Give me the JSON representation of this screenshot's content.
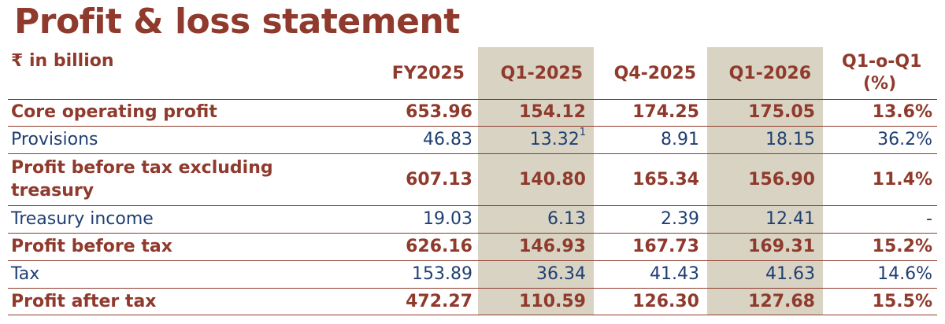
{
  "title": "Profit & loss statement",
  "unit_label": "₹ in billion",
  "columns": [
    "FY2025",
    "Q1-2025",
    "Q4-2025",
    "Q1-2026",
    "Q1-o-Q1",
    "(%)"
  ],
  "rows": [
    {
      "label": [
        "Core operating profit"
      ],
      "values": [
        "653.96",
        "154.12",
        "174.25",
        "175.05",
        "13.6%"
      ],
      "sup": ""
    },
    {
      "label": [
        "Provisions"
      ],
      "values": [
        "46.83",
        "13.32",
        "8.91",
        "18.15",
        "36.2%"
      ],
      "sup": "1"
    },
    {
      "label": [
        "Profit before tax excluding",
        "treasury"
      ],
      "values": [
        "607.13",
        "140.80",
        "165.34",
        "156.90",
        "11.4%"
      ],
      "sup": ""
    },
    {
      "label": [
        "Treasury income"
      ],
      "values": [
        "19.03",
        "6.13",
        "2.39",
        "12.41",
        "-"
      ],
      "sup": ""
    },
    {
      "label": [
        "Profit before tax"
      ],
      "values": [
        "626.16",
        "146.93",
        "167.73",
        "169.31",
        "15.2%"
      ],
      "sup": ""
    },
    {
      "label": [
        "Tax"
      ],
      "values": [
        "153.89",
        "36.34",
        "41.43",
        "41.63",
        "14.6%"
      ],
      "sup": ""
    },
    {
      "label": [
        "Profit after tax"
      ],
      "values": [
        "472.27",
        "110.59",
        "126.30",
        "127.68",
        "15.5%"
      ],
      "sup": ""
    }
  ]
}
